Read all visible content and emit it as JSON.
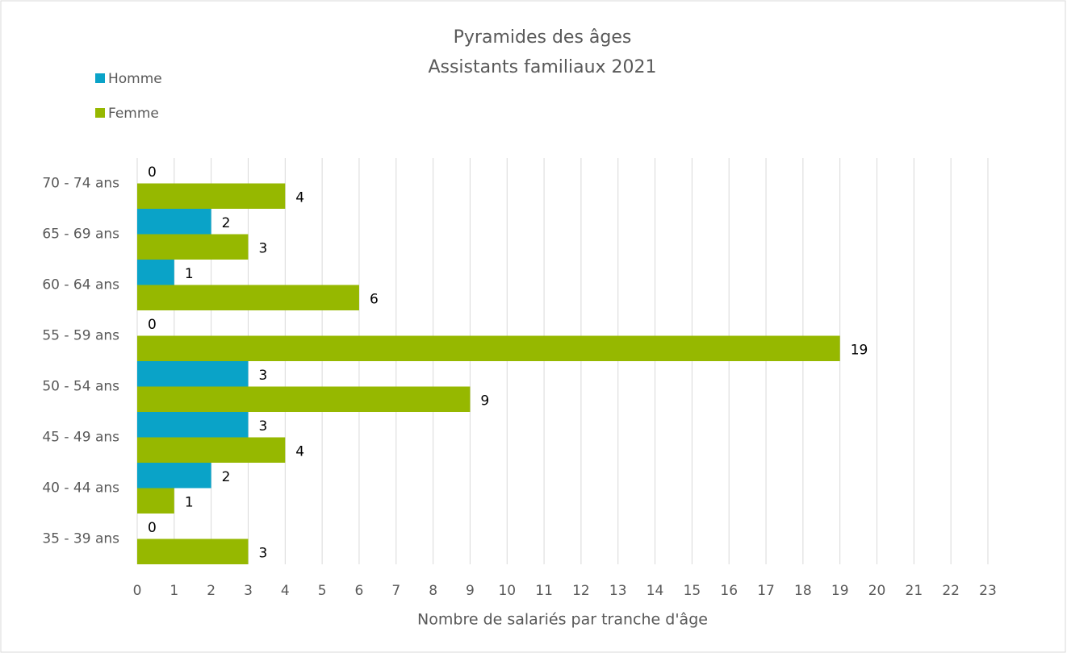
{
  "chart_data": {
    "type": "hbar",
    "title": "Pyramides des âges",
    "subtitle": "Assistants familiaux 2021",
    "x_label": "Nombre de salariés par tranche d'âge",
    "categories": [
      "35 - 39 ans",
      "40 - 44 ans",
      "45 - 49 ans",
      "50 - 54 ans",
      "55 - 59 ans",
      "60 - 64 ans",
      "65 - 69 ans",
      "70 - 74 ans"
    ],
    "series": [
      {
        "name": "Homme",
        "color": "#0aa3c8",
        "values": [
          0,
          2,
          3,
          3,
          0,
          1,
          2,
          0
        ]
      },
      {
        "name": "Femme",
        "color": "#96b800",
        "values": [
          3,
          1,
          4,
          9,
          19,
          6,
          3,
          4
        ]
      }
    ],
    "xlim": [
      0,
      23
    ],
    "xticks": [
      0,
      1,
      2,
      3,
      4,
      5,
      6,
      7,
      8,
      9,
      10,
      11,
      12,
      13,
      14,
      15,
      16,
      17,
      18,
      19,
      20,
      21,
      22,
      23
    ],
    "grid": true,
    "legend": "top-left"
  }
}
